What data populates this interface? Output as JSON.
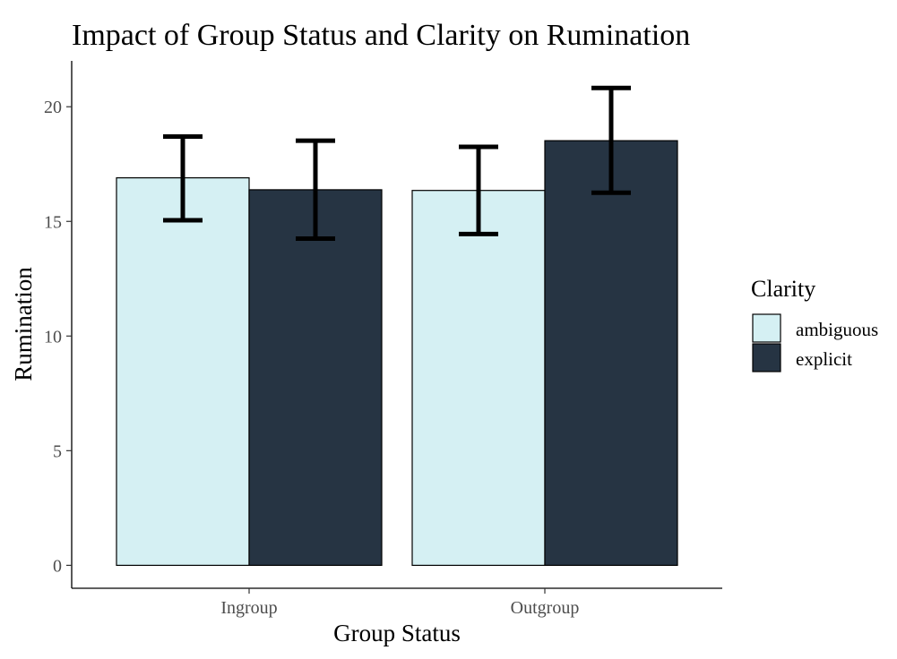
{
  "chart_data": {
    "type": "bar",
    "title": "Impact of Group Status and Clarity on Rumination",
    "xlabel": "Group Status",
    "ylabel": "Rumination",
    "categories": [
      "Ingroup",
      "Outgroup"
    ],
    "ylim": [
      -1,
      22
    ],
    "yticks": [
      0,
      5,
      10,
      15,
      20
    ],
    "legend_title": "Clarity",
    "legend_position": "right",
    "grid": false,
    "series": [
      {
        "name": "ambiguous",
        "color": "#d5f0f3",
        "values": [
          16.9,
          16.35
        ],
        "error_low": [
          15.05,
          14.45
        ],
        "error_high": [
          18.7,
          18.25
        ]
      },
      {
        "name": "explicit",
        "color": "#263443",
        "values": [
          16.38,
          18.52
        ],
        "error_low": [
          14.25,
          16.25
        ],
        "error_high": [
          18.52,
          20.82
        ]
      }
    ]
  }
}
